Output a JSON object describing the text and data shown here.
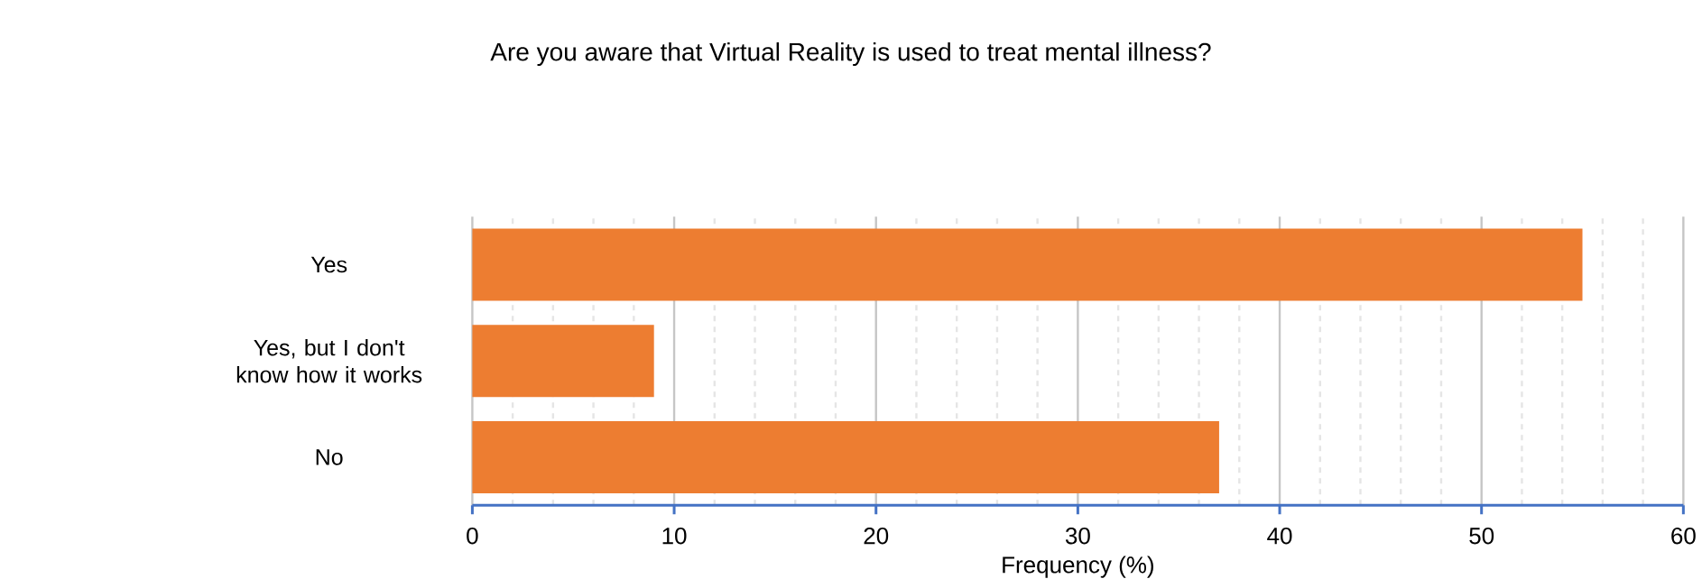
{
  "chart_data": {
    "type": "bar",
    "orientation": "horizontal",
    "title": "Are you aware that Virtual Reality is used to treat mental illness?",
    "xlabel": "Frequency (%)",
    "categories": [
      "Yes",
      "Yes, but I don't know how it works",
      "No"
    ],
    "values": [
      55,
      9,
      37
    ],
    "color": "#ed7d31",
    "xlim": [
      0,
      60
    ],
    "xticks": [
      0,
      10,
      20,
      30,
      40,
      50,
      60
    ],
    "grid": "x"
  }
}
